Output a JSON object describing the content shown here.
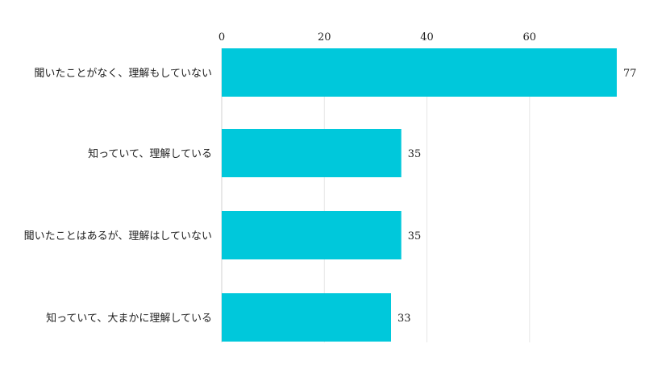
{
  "chart_data": {
    "type": "bar",
    "orientation": "horizontal",
    "categories": [
      "聞いたことがなく、理解もしていない",
      "知っていて、理解している",
      "聞いたことはあるが、理解はしていない",
      "知っていて、大まかに理解している"
    ],
    "values": [
      77,
      35,
      35,
      33
    ],
    "xlim": [
      0,
      77
    ],
    "xticks": [
      0,
      20,
      40,
      60
    ],
    "tick_position": "top",
    "grid": true,
    "data_labels": true,
    "bar_color": "#00c8db"
  }
}
